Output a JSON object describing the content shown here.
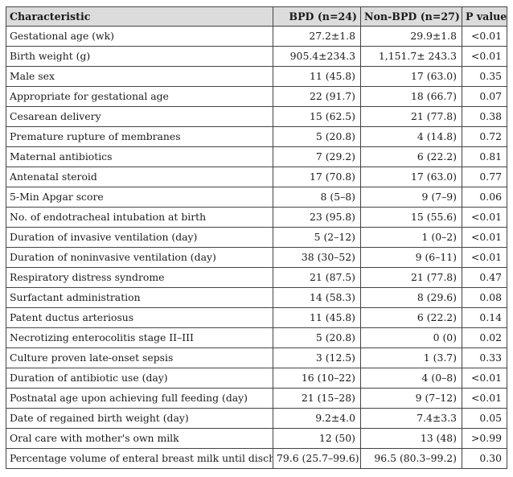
{
  "table": {
    "headers": {
      "characteristic": "Characteristic",
      "bpd": "BPD (n=24)",
      "non_bpd": "Non-BPD (n=27)",
      "p_value": "P value"
    },
    "rows": [
      {
        "characteristic": "Gestational age (wk)",
        "bpd": "27.2±1.8",
        "non_bpd": "29.9±1.8",
        "p": "<0.01"
      },
      {
        "characteristic": "Birth weight (g)",
        "bpd": "905.4±234.3",
        "non_bpd": "1,151.7± 243.3",
        "p": "<0.01"
      },
      {
        "characteristic": "Male sex",
        "bpd": "11 (45.8)",
        "non_bpd": "17 (63.0)",
        "p": "0.35"
      },
      {
        "characteristic": "Appropriate for gestational age",
        "bpd": "22 (91.7)",
        "non_bpd": "18 (66.7)",
        "p": "0.07"
      },
      {
        "characteristic": "Cesarean delivery",
        "bpd": "15 (62.5)",
        "non_bpd": "21 (77.8)",
        "p": "0.38"
      },
      {
        "characteristic": "Premature rupture of membranes",
        "bpd": "5 (20.8)",
        "non_bpd": "4 (14.8)",
        "p": "0.72"
      },
      {
        "characteristic": "Maternal antibiotics",
        "bpd": "7 (29.2)",
        "non_bpd": "6 (22.2)",
        "p": "0.81"
      },
      {
        "characteristic": "Antenatal steroid",
        "bpd": "17 (70.8)",
        "non_bpd": "17 (63.0)",
        "p": "0.77"
      },
      {
        "characteristic": "5-Min Apgar score",
        "bpd": "8 (5–8)",
        "non_bpd": "9 (7–9)",
        "p": "0.06"
      },
      {
        "characteristic": "No. of endotracheal intubation at birth",
        "bpd": "23 (95.8)",
        "non_bpd": "15 (55.6)",
        "p": "<0.01"
      },
      {
        "characteristic": "Duration of invasive ventilation (day)",
        "bpd": "5 (2–12)",
        "non_bpd": "1 (0–2)",
        "p": "<0.01"
      },
      {
        "characteristic": "Duration of noninvasive ventilation (day)",
        "bpd": "38 (30–52)",
        "non_bpd": "9 (6–11)",
        "p": "<0.01"
      },
      {
        "characteristic": "Respiratory distress syndrome",
        "bpd": "21 (87.5)",
        "non_bpd": "21 (77.8)",
        "p": "0.47"
      },
      {
        "characteristic": "Surfactant administration",
        "bpd": "14 (58.3)",
        "non_bpd": "8 (29.6)",
        "p": "0.08"
      },
      {
        "characteristic": "Patent ductus arteriosus",
        "bpd": "11 (45.8)",
        "non_bpd": "6 (22.2)",
        "p": "0.14"
      },
      {
        "characteristic": "Necrotizing enterocolitis stage II–III",
        "bpd": "5 (20.8)",
        "non_bpd": "0 (0)",
        "p": "0.02"
      },
      {
        "characteristic": "Culture proven late-onset sepsis",
        "bpd": "3 (12.5)",
        "non_bpd": "1 (3.7)",
        "p": "0.33"
      },
      {
        "characteristic": "Duration of antibiotic use (day)",
        "bpd": "16 (10–22)",
        "non_bpd": "4 (0–8)",
        "p": "<0.01"
      },
      {
        "characteristic": "Postnatal age upon achieving full feeding (day)",
        "bpd": "21 (15–28)",
        "non_bpd": "9 (7–12)",
        "p": "<0.01"
      },
      {
        "characteristic": "Date of regained birth weight (day)",
        "bpd": "9.2±4.0",
        "non_bpd": "7.4±3.3",
        "p": "0.05"
      },
      {
        "characteristic": "Oral care with mother's own milk",
        "bpd": "12 (50)",
        "non_bpd": "13 (48)",
        "p": ">0.99"
      },
      {
        "characteristic": "Percentage volume of enteral breast milk until discharge",
        "bpd": "79.6 (25.7–99.6)",
        "non_bpd": "96.5 (80.3–99.2)",
        "p": "0.30"
      }
    ]
  }
}
